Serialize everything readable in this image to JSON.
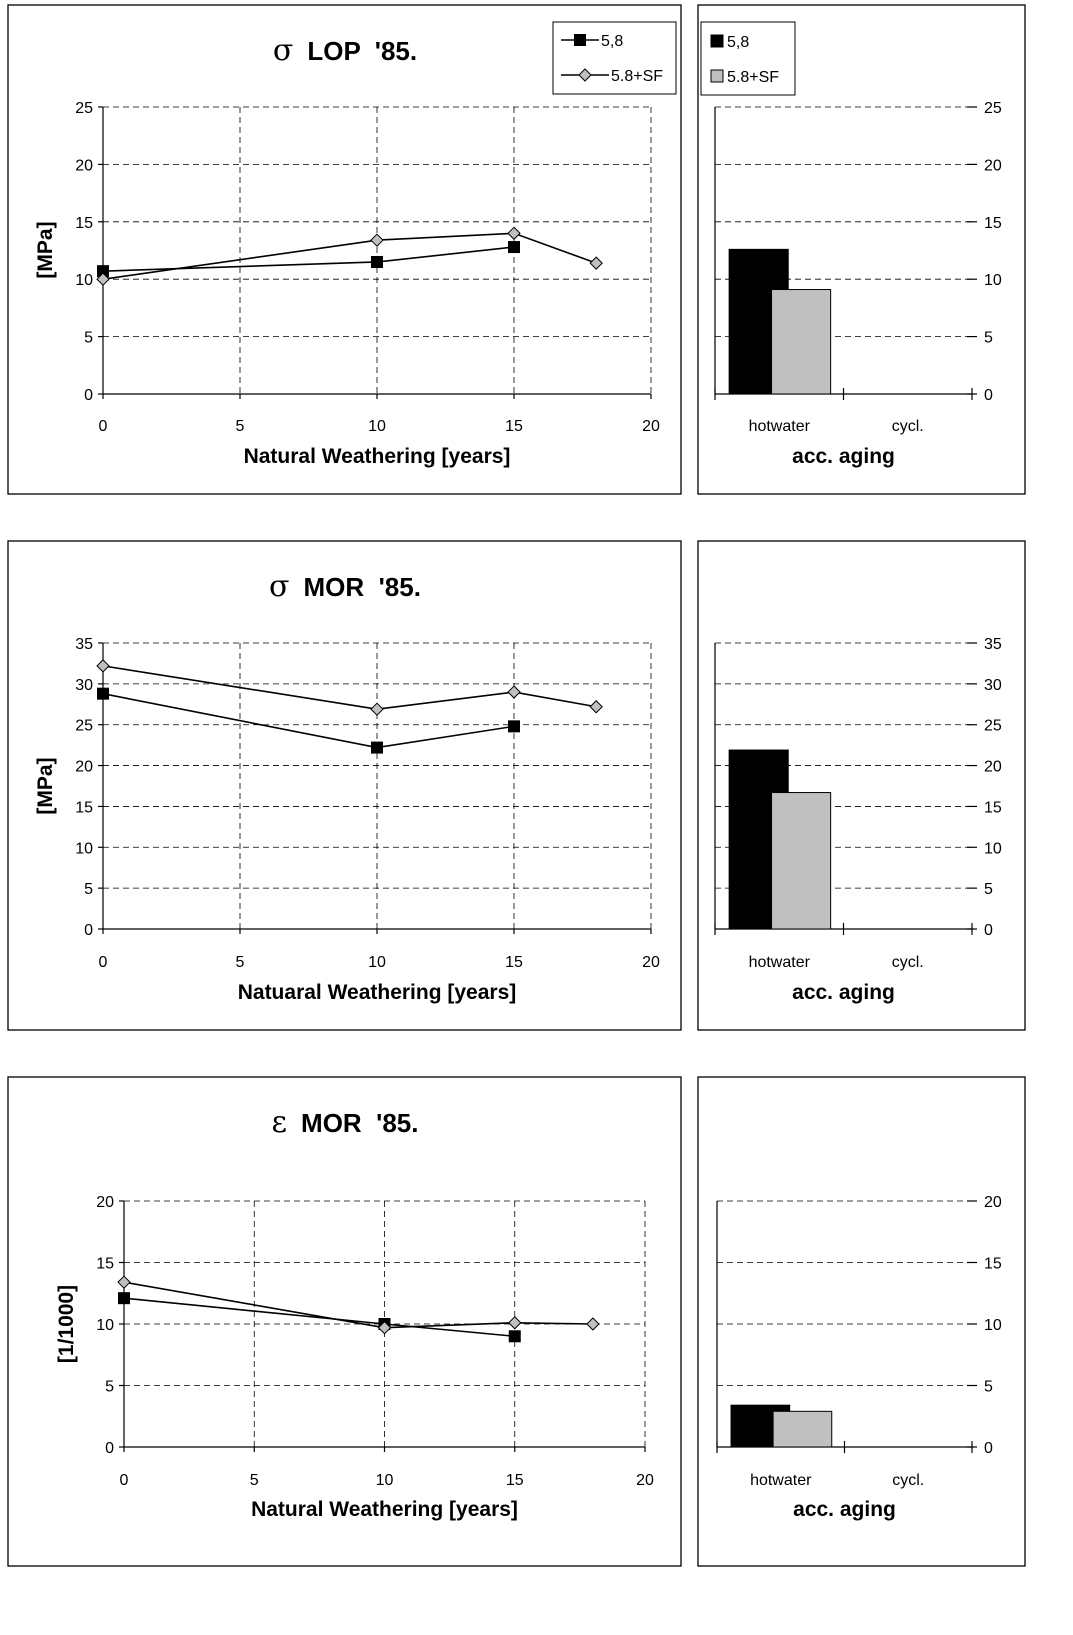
{
  "colors": {
    "series1": "#000000",
    "series2": "#c0c0c0",
    "line": "#000000"
  },
  "chart_data": [
    {
      "type": "line",
      "title_symbol": "σ",
      "title": "LOP  '85.",
      "xlabel": "Natural Weathering [years]",
      "ylabel": "[MPa]",
      "xlim": [
        0,
        20
      ],
      "ylim": [
        0,
        25
      ],
      "xticks": [
        0,
        5,
        10,
        15,
        20
      ],
      "yticks": [
        0,
        5,
        10,
        15,
        20,
        25
      ],
      "grid": true,
      "legend": "top-right",
      "series": [
        {
          "name": "5,8",
          "marker": "square",
          "x": [
            0,
            10,
            15
          ],
          "y": [
            10.7,
            11.5,
            12.8
          ]
        },
        {
          "name": "5.8+SF",
          "marker": "diamond",
          "x": [
            0,
            10,
            15,
            18
          ],
          "y": [
            10.0,
            13.4,
            14.0,
            11.4
          ]
        }
      ]
    },
    {
      "type": "bar",
      "xlabel": "acc. aging",
      "categories": [
        "hotwater",
        "cycl."
      ],
      "ylim": [
        0,
        25
      ],
      "yticks": [
        0,
        5,
        10,
        15,
        20,
        25
      ],
      "grid": true,
      "legend": "top-left",
      "series": [
        {
          "name": "5,8",
          "values": [
            12.6,
            null
          ]
        },
        {
          "name": "5.8+SF",
          "values": [
            9.1,
            null
          ]
        }
      ]
    },
    {
      "type": "line",
      "title_symbol": "σ",
      "title": "MOR  '85.",
      "xlabel": "Natuaral Weathering [years]",
      "ylabel": "[MPa]",
      "xlim": [
        0,
        20
      ],
      "ylim": [
        0,
        35
      ],
      "xticks": [
        0,
        5,
        10,
        15,
        20
      ],
      "yticks": [
        0,
        5,
        10,
        15,
        20,
        25,
        30,
        35
      ],
      "grid": true,
      "series": [
        {
          "name": "5,8",
          "marker": "square",
          "x": [
            0,
            10,
            15
          ],
          "y": [
            28.8,
            22.2,
            24.8
          ]
        },
        {
          "name": "5.8+SF",
          "marker": "diamond",
          "x": [
            0,
            10,
            15,
            18
          ],
          "y": [
            32.2,
            26.9,
            29.0,
            27.2
          ]
        }
      ]
    },
    {
      "type": "bar",
      "xlabel": "acc. aging",
      "categories": [
        "hotwater",
        "cycl."
      ],
      "ylim": [
        0,
        35
      ],
      "yticks": [
        0,
        5,
        10,
        15,
        20,
        25,
        30,
        35
      ],
      "grid": true,
      "series": [
        {
          "name": "5,8",
          "values": [
            21.9,
            null
          ]
        },
        {
          "name": "5.8+SF",
          "values": [
            16.7,
            null
          ]
        }
      ]
    },
    {
      "type": "line",
      "title_symbol": "ε",
      "title": "MOR  '85.",
      "xlabel": "Natural Weathering [years]",
      "ylabel": "[1/1000]",
      "xlim": [
        0,
        20
      ],
      "ylim": [
        0,
        20
      ],
      "xticks": [
        0,
        5,
        10,
        15,
        20
      ],
      "yticks": [
        0,
        5,
        10,
        15,
        20
      ],
      "grid": true,
      "series": [
        {
          "name": "5,8",
          "marker": "square",
          "x": [
            0,
            10,
            15
          ],
          "y": [
            12.1,
            10.0,
            9.0
          ]
        },
        {
          "name": "5.8+SF",
          "marker": "diamond",
          "x": [
            0,
            10,
            15,
            18
          ],
          "y": [
            13.4,
            9.7,
            10.1,
            10.0
          ]
        }
      ]
    },
    {
      "type": "bar",
      "xlabel": "acc. aging",
      "categories": [
        "hotwater",
        "cycl."
      ],
      "ylim": [
        0,
        20
      ],
      "yticks": [
        0,
        5,
        10,
        15,
        20
      ],
      "grid": true,
      "series": [
        {
          "name": "5,8",
          "values": [
            3.4,
            null
          ]
        },
        {
          "name": "5.8+SF",
          "values": [
            2.9,
            null
          ]
        }
      ]
    }
  ]
}
